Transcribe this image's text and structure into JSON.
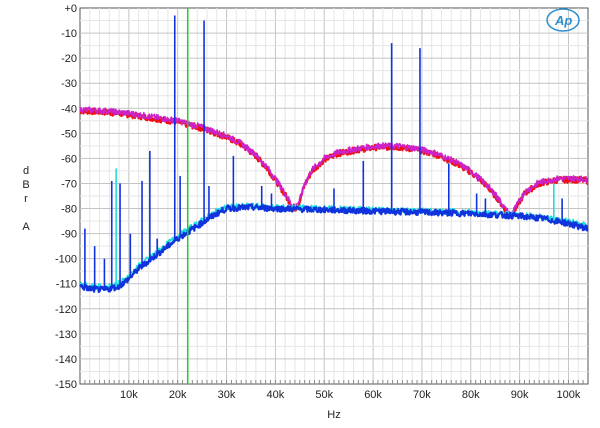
{
  "chart_data": {
    "type": "line",
    "xlabel": "Hz",
    "ylabel_lines": [
      "d",
      "B",
      "r",
      "",
      "A"
    ],
    "x_range": [
      0,
      104000
    ],
    "y_range": [
      -150,
      0
    ],
    "grid": true,
    "x_ticks": [
      {
        "value": 10000,
        "label": "10k"
      },
      {
        "value": 20000,
        "label": "20k"
      },
      {
        "value": 30000,
        "label": "30k"
      },
      {
        "value": 40000,
        "label": "40k"
      },
      {
        "value": 50000,
        "label": "50k"
      },
      {
        "value": 60000,
        "label": "60k"
      },
      {
        "value": 70000,
        "label": "70k"
      },
      {
        "value": 80000,
        "label": "80k"
      },
      {
        "value": 90000,
        "label": "90k"
      },
      {
        "value": 100000,
        "label": "100k"
      }
    ],
    "y_ticks": [
      {
        "value": 0,
        "label": "+0"
      },
      {
        "value": -10,
        "label": "-10"
      },
      {
        "value": -20,
        "label": "-20"
      },
      {
        "value": -30,
        "label": "-30"
      },
      {
        "value": -40,
        "label": "-40"
      },
      {
        "value": -50,
        "label": "-50"
      },
      {
        "value": -60,
        "label": "-60"
      },
      {
        "value": -70,
        "label": "-70"
      },
      {
        "value": -80,
        "label": "-80"
      },
      {
        "value": -90,
        "label": "-90"
      },
      {
        "value": -100,
        "label": "-100"
      },
      {
        "value": -110,
        "label": "-110"
      },
      {
        "value": -120,
        "label": "-120"
      },
      {
        "value": -130,
        "label": "-130"
      },
      {
        "value": -140,
        "label": "-140"
      },
      {
        "value": -150,
        "label": "-150"
      }
    ],
    "marker_line": {
      "x": 22050,
      "color": "#22cc22"
    },
    "series": [
      {
        "color": "#ee1111",
        "points": [
          [
            0,
            -41
          ],
          [
            5000,
            -41.5
          ],
          [
            10000,
            -42.5
          ],
          [
            15000,
            -44
          ],
          [
            20000,
            -45.5
          ],
          [
            25000,
            -48
          ],
          [
            30000,
            -51.5
          ],
          [
            33000,
            -54.5
          ],
          [
            36000,
            -59
          ],
          [
            38500,
            -64.5
          ],
          [
            40500,
            -70
          ],
          [
            42000,
            -74.5
          ],
          [
            43200,
            -78.5
          ],
          [
            44100,
            -80
          ],
          [
            45000,
            -77
          ],
          [
            46000,
            -70.5
          ],
          [
            47500,
            -65
          ],
          [
            50000,
            -60.5
          ],
          [
            53000,
            -58
          ],
          [
            57000,
            -56.5
          ],
          [
            61000,
            -55.5
          ],
          [
            65000,
            -55.5
          ],
          [
            69000,
            -56.5
          ],
          [
            73000,
            -58.5
          ],
          [
            77000,
            -62
          ],
          [
            80000,
            -65.5
          ],
          [
            83000,
            -70.5
          ],
          [
            85500,
            -76
          ],
          [
            87000,
            -80.5
          ],
          [
            88200,
            -83
          ],
          [
            89500,
            -79
          ],
          [
            91000,
            -74
          ],
          [
            94000,
            -70
          ],
          [
            98000,
            -68.5
          ],
          [
            102000,
            -68.5
          ],
          [
            104000,
            -69
          ]
        ]
      },
      {
        "color": "#cc22cc",
        "points": [
          [
            0,
            -40.5
          ],
          [
            5000,
            -41
          ],
          [
            10000,
            -42
          ],
          [
            15000,
            -43.5
          ],
          [
            20000,
            -45
          ],
          [
            25000,
            -47.5
          ],
          [
            30000,
            -51
          ],
          [
            33000,
            -54
          ],
          [
            36000,
            -58.5
          ],
          [
            38500,
            -64
          ],
          [
            40500,
            -69.5
          ],
          [
            42000,
            -74
          ],
          [
            43200,
            -78
          ],
          [
            44100,
            -79.5
          ],
          [
            45000,
            -76.5
          ],
          [
            46000,
            -70
          ],
          [
            47500,
            -64.5
          ],
          [
            50000,
            -60
          ],
          [
            53000,
            -57.5
          ],
          [
            57000,
            -56
          ],
          [
            61000,
            -55
          ],
          [
            65000,
            -55
          ],
          [
            69000,
            -56
          ],
          [
            73000,
            -58
          ],
          [
            77000,
            -61.5
          ],
          [
            80000,
            -65
          ],
          [
            83000,
            -70
          ],
          [
            85500,
            -75.5
          ],
          [
            87000,
            -80
          ],
          [
            88200,
            -82.5
          ],
          [
            89500,
            -78.5
          ],
          [
            91000,
            -73.5
          ],
          [
            94000,
            -69.5
          ],
          [
            98000,
            -68
          ],
          [
            102000,
            -68
          ],
          [
            104000,
            -68.5
          ]
        ]
      },
      {
        "color": "#22dddd",
        "points": [
          [
            0,
            -110
          ],
          [
            2000,
            -111
          ],
          [
            5000,
            -111.5
          ],
          [
            8000,
            -110
          ],
          [
            10000,
            -107
          ],
          [
            12000,
            -103
          ],
          [
            14000,
            -100
          ],
          [
            16000,
            -97
          ],
          [
            18000,
            -94
          ],
          [
            20000,
            -91
          ],
          [
            22000,
            -88.5
          ],
          [
            24000,
            -86
          ],
          [
            26000,
            -83.5
          ],
          [
            28000,
            -81
          ],
          [
            30000,
            -79.5
          ],
          [
            35000,
            -79
          ],
          [
            40000,
            -79.5
          ],
          [
            50000,
            -80
          ],
          [
            60000,
            -80.5
          ],
          [
            70000,
            -81
          ],
          [
            80000,
            -81.5
          ],
          [
            90000,
            -82.5
          ],
          [
            95000,
            -83.5
          ],
          [
            100000,
            -85
          ],
          [
            104000,
            -87
          ]
        ]
      },
      {
        "color": "#1133dd",
        "points": [
          [
            0,
            -111
          ],
          [
            2000,
            -112
          ],
          [
            5000,
            -112.5
          ],
          [
            8000,
            -111
          ],
          [
            10000,
            -108
          ],
          [
            12000,
            -104
          ],
          [
            14000,
            -101
          ],
          [
            16000,
            -98
          ],
          [
            18000,
            -95
          ],
          [
            20000,
            -92
          ],
          [
            22000,
            -89.5
          ],
          [
            24000,
            -87
          ],
          [
            26000,
            -84.5
          ],
          [
            28000,
            -82
          ],
          [
            30000,
            -80
          ],
          [
            35000,
            -79.5
          ],
          [
            40000,
            -80
          ],
          [
            50000,
            -80.5
          ],
          [
            60000,
            -81
          ],
          [
            70000,
            -81.5
          ],
          [
            80000,
            -82
          ],
          [
            90000,
            -83
          ],
          [
            95000,
            -84
          ],
          [
            100000,
            -86
          ],
          [
            104000,
            -88
          ]
        ]
      }
    ],
    "spikes": [
      {
        "x": 1000,
        "top": -88,
        "color": "#1133dd"
      },
      {
        "x": 3000,
        "top": -95,
        "color": "#1133dd"
      },
      {
        "x": 5000,
        "top": -100,
        "color": "#1133dd"
      },
      {
        "x": 6500,
        "top": -69,
        "color": "#1133dd"
      },
      {
        "x": 7400,
        "top": -64,
        "color": "#22dddd"
      },
      {
        "x": 8200,
        "top": -70,
        "color": "#1133dd"
      },
      {
        "x": 10300,
        "top": -90,
        "color": "#1133dd"
      },
      {
        "x": 12700,
        "top": -69,
        "color": "#1133dd"
      },
      {
        "x": 14300,
        "top": -57,
        "color": "#1133dd"
      },
      {
        "x": 15800,
        "top": -92,
        "color": "#1133dd"
      },
      {
        "x": 19400,
        "top": -3,
        "color": "#1133dd"
      },
      {
        "x": 20500,
        "top": -67,
        "color": "#1133dd"
      },
      {
        "x": 25400,
        "top": -5,
        "color": "#1133dd"
      },
      {
        "x": 26400,
        "top": -71,
        "color": "#1133dd"
      },
      {
        "x": 31400,
        "top": -59,
        "color": "#1133dd"
      },
      {
        "x": 37200,
        "top": -71,
        "color": "#1133dd"
      },
      {
        "x": 39200,
        "top": -74,
        "color": "#1133dd"
      },
      {
        "x": 52000,
        "top": -72,
        "color": "#1133dd"
      },
      {
        "x": 58000,
        "top": -61,
        "color": "#1133dd"
      },
      {
        "x": 63800,
        "top": -14,
        "color": "#1133dd"
      },
      {
        "x": 69600,
        "top": -16,
        "color": "#1133dd"
      },
      {
        "x": 75500,
        "top": -62,
        "color": "#1133dd"
      },
      {
        "x": 81200,
        "top": -74,
        "color": "#1133dd"
      },
      {
        "x": 83000,
        "top": -76,
        "color": "#1133dd"
      },
      {
        "x": 97000,
        "top": -70,
        "color": "#22dddd"
      },
      {
        "x": 98700,
        "top": -76,
        "color": "#1133dd"
      }
    ]
  },
  "logo": {
    "text": "Ap",
    "color": "#2e8fd0"
  }
}
